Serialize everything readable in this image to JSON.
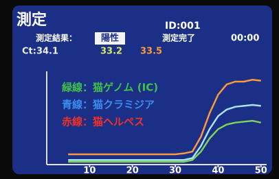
{
  "header": {
    "title": "測定",
    "id": "ID:001",
    "result_label": "測定結果：",
    "result": "陽性",
    "status": "測定完了",
    "time": "00:00",
    "ct": [
      "Ct:34.1",
      "33.2",
      "33.5"
    ]
  },
  "chart_data": {
    "type": "line",
    "x": [
      5,
      10,
      15,
      20,
      25,
      30,
      32,
      34,
      36,
      38,
      40,
      42,
      44,
      46,
      48,
      50
    ],
    "series": [
      {
        "name": "緑線：猫ゲノム (IC)",
        "color": "#7ed35a",
        "label_color": "#3fc24a",
        "values": [
          3,
          3,
          3,
          3,
          3,
          3,
          3,
          5,
          14,
          28,
          38,
          43,
          45,
          46,
          47,
          45
        ]
      },
      {
        "name": "青線：猫クラミジア",
        "color": "#a8e4f0",
        "label_color": "#3a8cf0",
        "values": [
          5,
          5,
          5,
          5,
          5,
          5,
          5,
          7,
          20,
          38,
          52,
          59,
          62,
          63,
          64,
          63
        ]
      },
      {
        "name": "赤線：猫ヘルペス",
        "color": "#ff9a3a",
        "label_color": "#f0302a",
        "values": [
          11,
          11,
          11,
          11,
          11,
          11,
          12,
          14,
          30,
          55,
          75,
          86,
          89,
          89,
          91,
          90
        ]
      }
    ],
    "xlim": [
      0,
      51
    ],
    "xticks": [
      10,
      20,
      30,
      40,
      50
    ],
    "ylim": [
      0,
      100
    ]
  }
}
